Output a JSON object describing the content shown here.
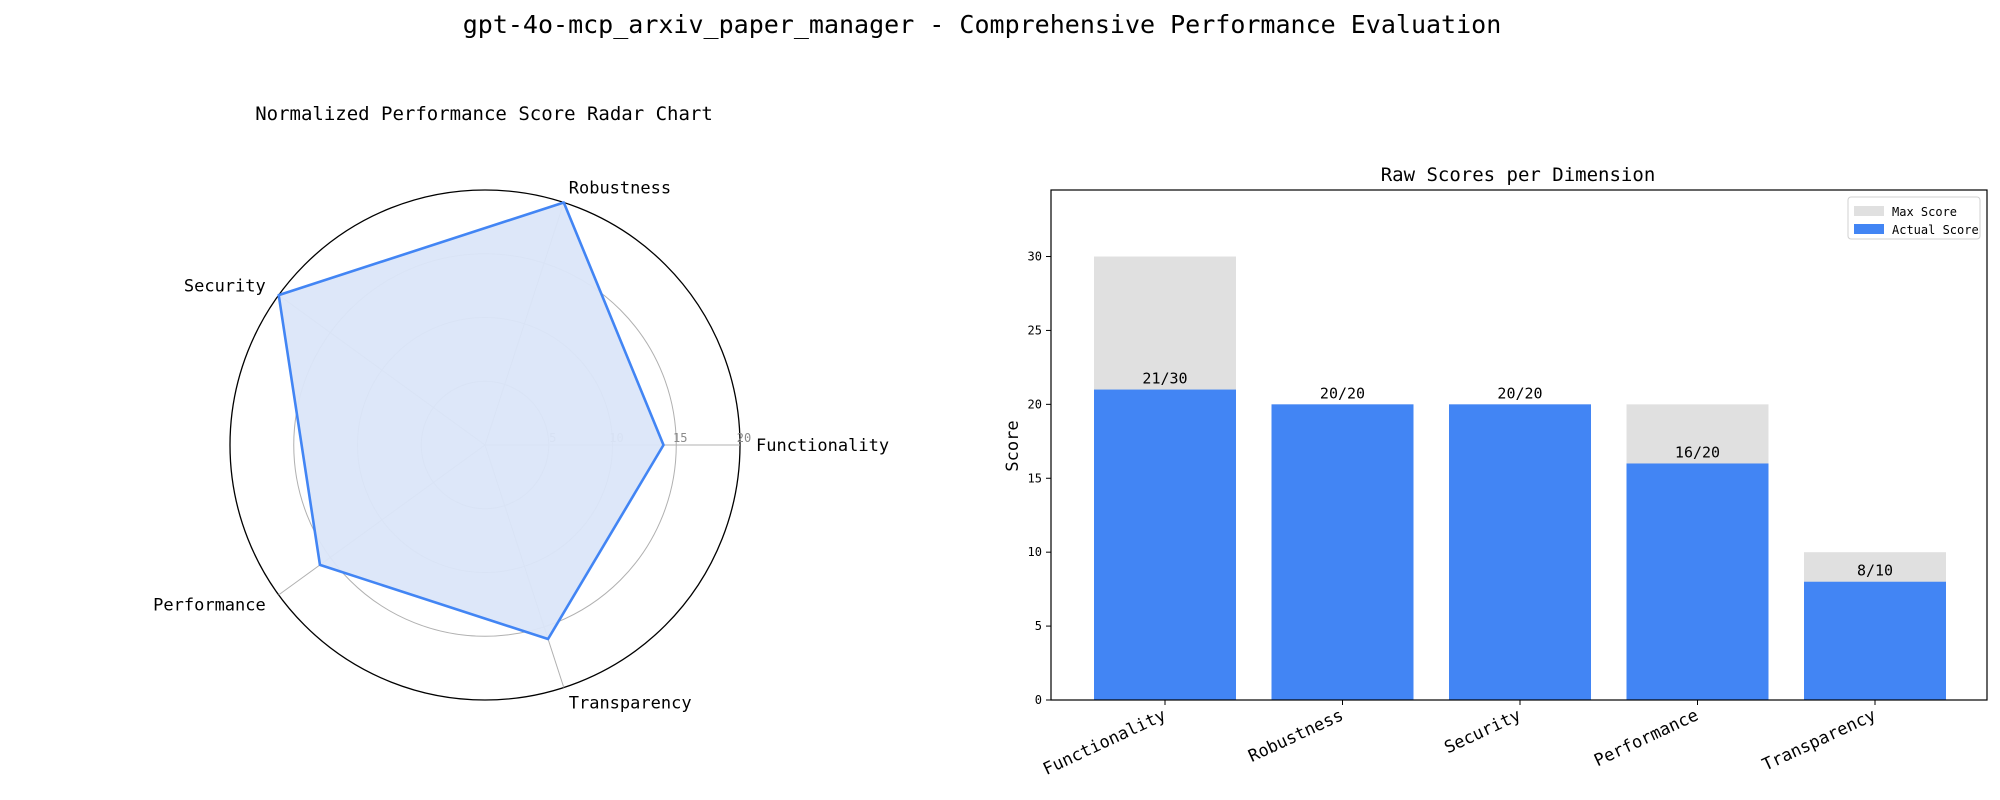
{
  "figure": {
    "title": "gpt-4o-mcp_arxiv_paper_manager - Comprehensive Performance Evaluation"
  },
  "colors": {
    "accent": "#4285f4",
    "radar_fill": "#dbe6f9",
    "max_bar": "#e0e0e0",
    "grid": "#b0b0b0"
  },
  "chart_data": [
    {
      "type": "radar",
      "title": "Normalized Performance Score Radar Chart",
      "axes": [
        "Functionality",
        "Robustness",
        "Security",
        "Performance",
        "Transparency"
      ],
      "values": [
        14,
        20,
        20,
        16,
        16
      ],
      "ylim": [
        0,
        20
      ],
      "rticks": [
        5,
        10,
        15,
        20
      ],
      "grid": true
    },
    {
      "type": "bar",
      "title": "Raw Scores per Dimension",
      "ylabel": "Score",
      "xlabel": "",
      "categories": [
        "Functionality",
        "Robustness",
        "Security",
        "Performance",
        "Transparency"
      ],
      "series": [
        {
          "name": "Max Score",
          "values": [
            30,
            20,
            20,
            20,
            10
          ]
        },
        {
          "name": "Actual Score",
          "values": [
            21,
            20,
            20,
            16,
            8
          ]
        }
      ],
      "data_labels": [
        "21/30",
        "20/20",
        "20/20",
        "16/20",
        "8/10"
      ],
      "ylim": [
        0,
        34.5
      ],
      "yticks": [
        0,
        5,
        10,
        15,
        20,
        25,
        30
      ],
      "legend": "top-right",
      "grid": false
    }
  ]
}
